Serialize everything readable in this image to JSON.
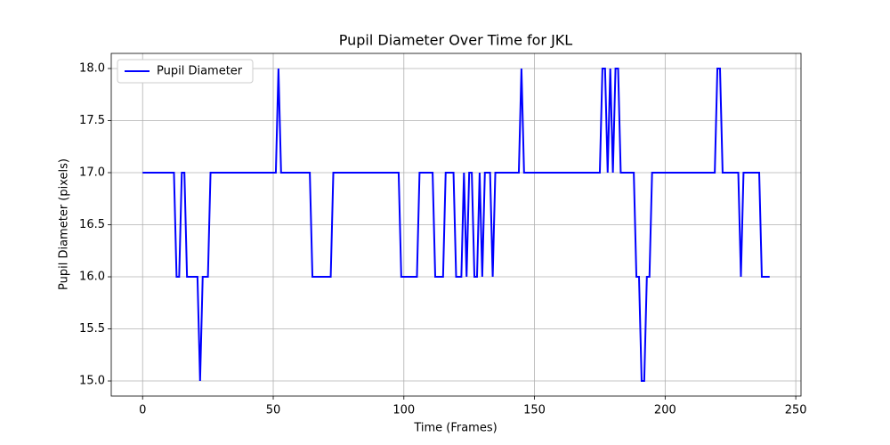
{
  "chart_data": {
    "type": "line",
    "title": "Pupil Diameter Over Time for JKL",
    "x_label": "Time (Frames)",
    "y_label": "Pupil Diameter (pixels)",
    "x": [
      0,
      12,
      13,
      14,
      15,
      16,
      17,
      21,
      22,
      23,
      25,
      26,
      51,
      52,
      53,
      64,
      65,
      72,
      73,
      98,
      99,
      105,
      106,
      111,
      112,
      115,
      116,
      119,
      120,
      122,
      123,
      124,
      125,
      126,
      127,
      128,
      129,
      130,
      131,
      133,
      134,
      135,
      144,
      145,
      146,
      175,
      176,
      177,
      178,
      179,
      180,
      181,
      182,
      183,
      188,
      189,
      190,
      191,
      192,
      193,
      194,
      195,
      219,
      220,
      221,
      222,
      228,
      229,
      230,
      236,
      237,
      240
    ],
    "series": [
      {
        "name": "Pupil Diameter",
        "color": "#0000ff",
        "values": [
          17,
          17,
          16,
          16,
          17,
          17,
          16,
          16,
          15,
          16,
          16,
          17,
          17,
          18,
          17,
          17,
          16,
          16,
          17,
          17,
          16,
          16,
          17,
          17,
          16,
          16,
          17,
          17,
          16,
          16,
          17,
          16,
          17,
          17,
          16,
          16,
          17,
          16,
          17,
          17,
          16,
          17,
          17,
          18,
          17,
          17,
          18,
          18,
          17,
          18,
          17,
          18,
          18,
          17,
          17,
          16,
          16,
          15,
          15,
          16,
          16,
          17,
          17,
          18,
          18,
          17,
          17,
          16,
          17,
          17,
          16,
          16
        ]
      }
    ],
    "xlim": [
      -12,
      252
    ],
    "ylim": [
      14.855,
      18.145
    ],
    "xticks": [
      0,
      50,
      100,
      150,
      200,
      250
    ],
    "yticks": [
      {
        "value": 15,
        "label": "15.0"
      },
      {
        "value": 15.5,
        "label": "15.5"
      },
      {
        "value": 16,
        "label": "16.0"
      },
      {
        "value": 16.5,
        "label": "16.5"
      },
      {
        "value": 17,
        "label": "17.0"
      },
      {
        "value": 17.5,
        "label": "17.5"
      },
      {
        "value": 18,
        "label": "18.0"
      }
    ],
    "grid": true,
    "legend": "upper-left"
  }
}
